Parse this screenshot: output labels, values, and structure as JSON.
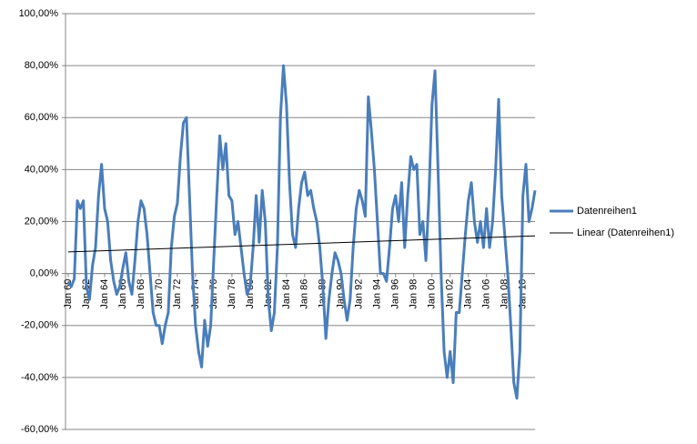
{
  "chart_data": {
    "type": "line",
    "categories": [
      "Jan 60",
      null,
      null,
      null,
      null,
      null,
      "Jan 62",
      null,
      null,
      null,
      null,
      null,
      "Jan 64",
      null,
      null,
      null,
      null,
      null,
      "Jan 66",
      null,
      null,
      null,
      null,
      null,
      "Jan 68",
      null,
      null,
      null,
      null,
      null,
      "Jan 70",
      null,
      null,
      null,
      null,
      null,
      "Jan 72",
      null,
      null,
      null,
      null,
      null,
      "Jan 74",
      null,
      null,
      null,
      null,
      null,
      "Jan 76",
      null,
      null,
      null,
      null,
      null,
      "Jan 78",
      null,
      null,
      null,
      null,
      null,
      "Jan 80",
      null,
      null,
      null,
      null,
      null,
      "Jan 82",
      null,
      null,
      null,
      null,
      null,
      "Jan 84",
      null,
      null,
      null,
      null,
      null,
      "Jan 86",
      null,
      null,
      null,
      null,
      null,
      "Jan 88",
      null,
      null,
      null,
      null,
      null,
      "Jan 90",
      null,
      null,
      null,
      null,
      null,
      "Jan 92",
      null,
      null,
      null,
      null,
      null,
      "Jan 94",
      null,
      null,
      null,
      null,
      null,
      "Jan 96",
      null,
      null,
      null,
      null,
      null,
      "Jan 98",
      null,
      null,
      null,
      null,
      null,
      "Jan 00",
      null,
      null,
      null,
      null,
      null,
      "Jan 02",
      null,
      null,
      null,
      null,
      null,
      "Jan 04",
      null,
      null,
      null,
      null,
      null,
      "Jan 06",
      null,
      null,
      null,
      null,
      null,
      "Jan 08",
      null,
      null,
      null,
      null,
      null,
      "Jan 10",
      null,
      null,
      null,
      null
    ],
    "series": [
      {
        "name": "Datenreihen1",
        "color": "#4a7ebb",
        "values": [
          -3,
          -5,
          -2,
          28,
          25,
          28,
          -5,
          -10,
          3,
          10,
          30,
          42,
          25,
          20,
          5,
          -3,
          -8,
          -5,
          2,
          8,
          -3,
          -8,
          5,
          20,
          28,
          25,
          15,
          0,
          -15,
          -20,
          -20,
          -27,
          -20,
          -15,
          10,
          22,
          27,
          45,
          58,
          60,
          30,
          0,
          -20,
          -30,
          -36,
          -18,
          -28,
          -20,
          5,
          30,
          53,
          40,
          50,
          30,
          28,
          15,
          20,
          10,
          0,
          -8,
          -5,
          10,
          30,
          12,
          32,
          20,
          -10,
          -22,
          -15,
          10,
          60,
          80,
          65,
          35,
          15,
          10,
          25,
          35,
          39,
          30,
          32,
          25,
          20,
          10,
          -5,
          -25,
          -10,
          0,
          8,
          5,
          0,
          -10,
          -18,
          -10,
          10,
          25,
          32,
          28,
          22,
          68,
          55,
          40,
          20,
          0,
          0,
          -3,
          10,
          25,
          30,
          20,
          35,
          10,
          30,
          45,
          40,
          42,
          15,
          20,
          5,
          30,
          65,
          78,
          40,
          0,
          -30,
          -40,
          -30,
          -42,
          -15,
          -15,
          0,
          15,
          28,
          35,
          20,
          12,
          20,
          10,
          25,
          10,
          20,
          40,
          67,
          30,
          15,
          0,
          -20,
          -42,
          -48,
          -30,
          30,
          42,
          20,
          25,
          32
        ]
      }
    ],
    "trend": {
      "name": "Linear (Datenreihen1)",
      "color": "#000000",
      "start": 8.3,
      "end": 14.5
    },
    "ylim": [
      -60,
      100
    ],
    "yticks": [
      {
        "value": -60,
        "label": "-60,00%"
      },
      {
        "value": -40,
        "label": "-40,00%"
      },
      {
        "value": -20,
        "label": "-20,00%"
      },
      {
        "value": 0,
        "label": "0,00%"
      },
      {
        "value": 20,
        "label": "20,00%"
      },
      {
        "value": 40,
        "label": "40,00%"
      },
      {
        "value": 60,
        "label": "60,00%"
      },
      {
        "value": 80,
        "label": "80,00%"
      },
      {
        "value": 100,
        "label": "100,00%"
      }
    ],
    "grid": true
  }
}
